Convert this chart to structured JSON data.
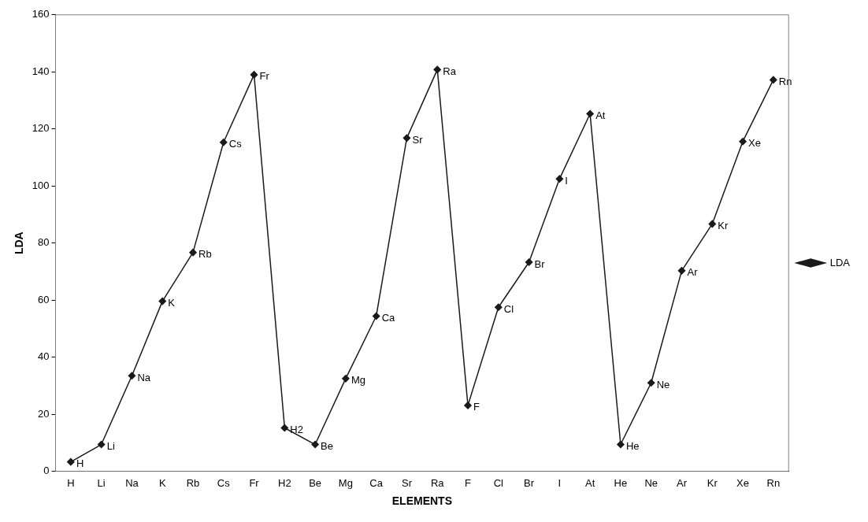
{
  "chart_data": {
    "type": "line",
    "xlabel": "ELEMENTS",
    "ylabel": "LDA",
    "categories": [
      "H",
      "Li",
      "Na",
      "K",
      "Rb",
      "Cs",
      "Fr",
      "H2",
      "Be",
      "Mg",
      "Ca",
      "Sr",
      "Ra",
      "F",
      "Cl",
      "Br",
      "I",
      "At",
      "He",
      "Ne",
      "Ar",
      "Kr",
      "Xe",
      "Rn"
    ],
    "series": [
      {
        "name": "LDA",
        "color": "#1a1a1a",
        "values": [
          3.3,
          9.4,
          33.5,
          59.6,
          76.7,
          115.3,
          139,
          15.2,
          9.4,
          32.5,
          54.4,
          116.8,
          140.8,
          23.1,
          57.5,
          73.3,
          102.5,
          125.3,
          9.4,
          31,
          70.3,
          86.7,
          115.6,
          137.2
        ]
      }
    ],
    "ylim": [
      0,
      160
    ],
    "yticks": [
      0,
      20,
      40,
      60,
      80,
      100,
      120,
      140,
      160
    ],
    "grid": false,
    "legend": "right",
    "marker": "diamond",
    "line_style": "solid",
    "annotations": [
      {
        "text": "H",
        "x": "H",
        "y": 3.3
      },
      {
        "text": "Li",
        "x": "Li",
        "y": 9.4
      },
      {
        "text": "Na",
        "x": "Na",
        "y": 33.5
      },
      {
        "text": "K",
        "x": "K",
        "y": 59.6
      },
      {
        "text": "Rb",
        "x": "Rb",
        "y": 76.7
      },
      {
        "text": "Cs",
        "x": "Cs",
        "y": 115.3
      },
      {
        "text": "Fr",
        "x": "Fr",
        "y": 139
      },
      {
        "text": "H2",
        "x": "H2",
        "y": 15.2
      },
      {
        "text": "Be",
        "x": "Be",
        "y": 9.4
      },
      {
        "text": "Mg",
        "x": "Mg",
        "y": 32.5
      },
      {
        "text": "Ca",
        "x": "Ca",
        "y": 54.4
      },
      {
        "text": "Sr",
        "x": "Sr",
        "y": 116.8
      },
      {
        "text": "Ra",
        "x": "Ra",
        "y": 140.8
      },
      {
        "text": "F",
        "x": "F",
        "y": 23.1
      },
      {
        "text": "Cl",
        "x": "Cl",
        "y": 57.5
      },
      {
        "text": "Br",
        "x": "Br",
        "y": 73.3
      },
      {
        "text": "I",
        "x": "I",
        "y": 102.5
      },
      {
        "text": "At",
        "x": "At",
        "y": 125.3
      },
      {
        "text": "He",
        "x": "He",
        "y": 9.4
      },
      {
        "text": "Ne",
        "x": "Ne",
        "y": 31
      },
      {
        "text": "Ar",
        "x": "Ar",
        "y": 70.3
      },
      {
        "text": "Kr",
        "x": "Kr",
        "y": 86.7
      },
      {
        "text": "Xe",
        "x": "Xe",
        "y": 115.6
      },
      {
        "text": "Rn",
        "x": "Rn",
        "y": 137.2
      }
    ]
  }
}
